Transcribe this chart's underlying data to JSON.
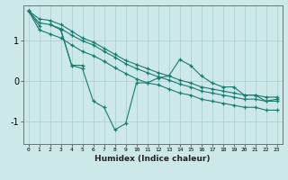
{
  "xlabel": "Humidex (Indice chaleur)",
  "bg_color": "#cce8e8",
  "line_color": "#1a7a6e",
  "grid_color": "#b0d0d0",
  "xlim": [
    -0.5,
    23.5
  ],
  "ylim": [
    -1.55,
    1.85
  ],
  "yticks": [
    -1,
    0,
    1
  ],
  "xticks": [
    0,
    1,
    2,
    3,
    4,
    5,
    6,
    7,
    8,
    9,
    10,
    11,
    12,
    13,
    14,
    15,
    16,
    17,
    18,
    19,
    20,
    21,
    22,
    23
  ],
  "series": [
    {
      "x": [
        0,
        1
      ],
      "y": [
        1.72,
        1.35
      ]
    },
    {
      "x": [
        2,
        3,
        4,
        5
      ],
      "y": [
        1.38,
        1.25,
        0.38,
        0.38
      ]
    },
    {
      "x": [
        3,
        4,
        5,
        6,
        7,
        8,
        9,
        10,
        11,
        12,
        13,
        14,
        15,
        16,
        17,
        18,
        19,
        20,
        21,
        22,
        23
      ],
      "y": [
        1.25,
        0.38,
        0.3,
        -0.5,
        -0.65,
        -1.2,
        -1.05,
        -0.05,
        -0.05,
        0.07,
        0.12,
        0.52,
        0.38,
        0.12,
        -0.05,
        -0.15,
        -0.15,
        -0.35,
        -0.35,
        -0.5,
        -0.45
      ]
    },
    {
      "x": [
        0,
        1,
        2,
        3,
        4,
        5,
        6,
        7,
        8,
        9,
        10,
        11,
        12,
        13,
        14,
        15,
        16,
        17,
        18,
        19,
        20,
        21,
        22,
        23
      ],
      "y": [
        1.72,
        1.25,
        1.15,
        1.05,
        0.88,
        0.72,
        0.62,
        0.48,
        0.32,
        0.18,
        0.05,
        -0.05,
        -0.1,
        -0.2,
        -0.3,
        -0.35,
        -0.45,
        -0.5,
        -0.55,
        -0.6,
        -0.65,
        -0.65,
        -0.72,
        -0.72
      ]
    },
    {
      "x": [
        0,
        1,
        2,
        3,
        4,
        5,
        6,
        7,
        8,
        9,
        10,
        11,
        12,
        13,
        14,
        15,
        16,
        17,
        18,
        19,
        20,
        21,
        22,
        23
      ],
      "y": [
        1.72,
        1.42,
        1.38,
        1.28,
        1.12,
        0.98,
        0.88,
        0.72,
        0.58,
        0.42,
        0.3,
        0.2,
        0.1,
        0.02,
        -0.08,
        -0.15,
        -0.25,
        -0.3,
        -0.35,
        -0.4,
        -0.45,
        -0.45,
        -0.5,
        -0.5
      ]
    },
    {
      "x": [
        0,
        1,
        2,
        3,
        4,
        5,
        6,
        7,
        8,
        9,
        10,
        11,
        12,
        13,
        14,
        15,
        16,
        17,
        18,
        19,
        20,
        21,
        22,
        23
      ],
      "y": [
        1.72,
        1.52,
        1.48,
        1.38,
        1.22,
        1.05,
        0.95,
        0.8,
        0.65,
        0.5,
        0.4,
        0.3,
        0.2,
        0.12,
        0.02,
        -0.05,
        -0.15,
        -0.2,
        -0.25,
        -0.3,
        -0.35,
        -0.35,
        -0.4,
        -0.4
      ]
    }
  ]
}
